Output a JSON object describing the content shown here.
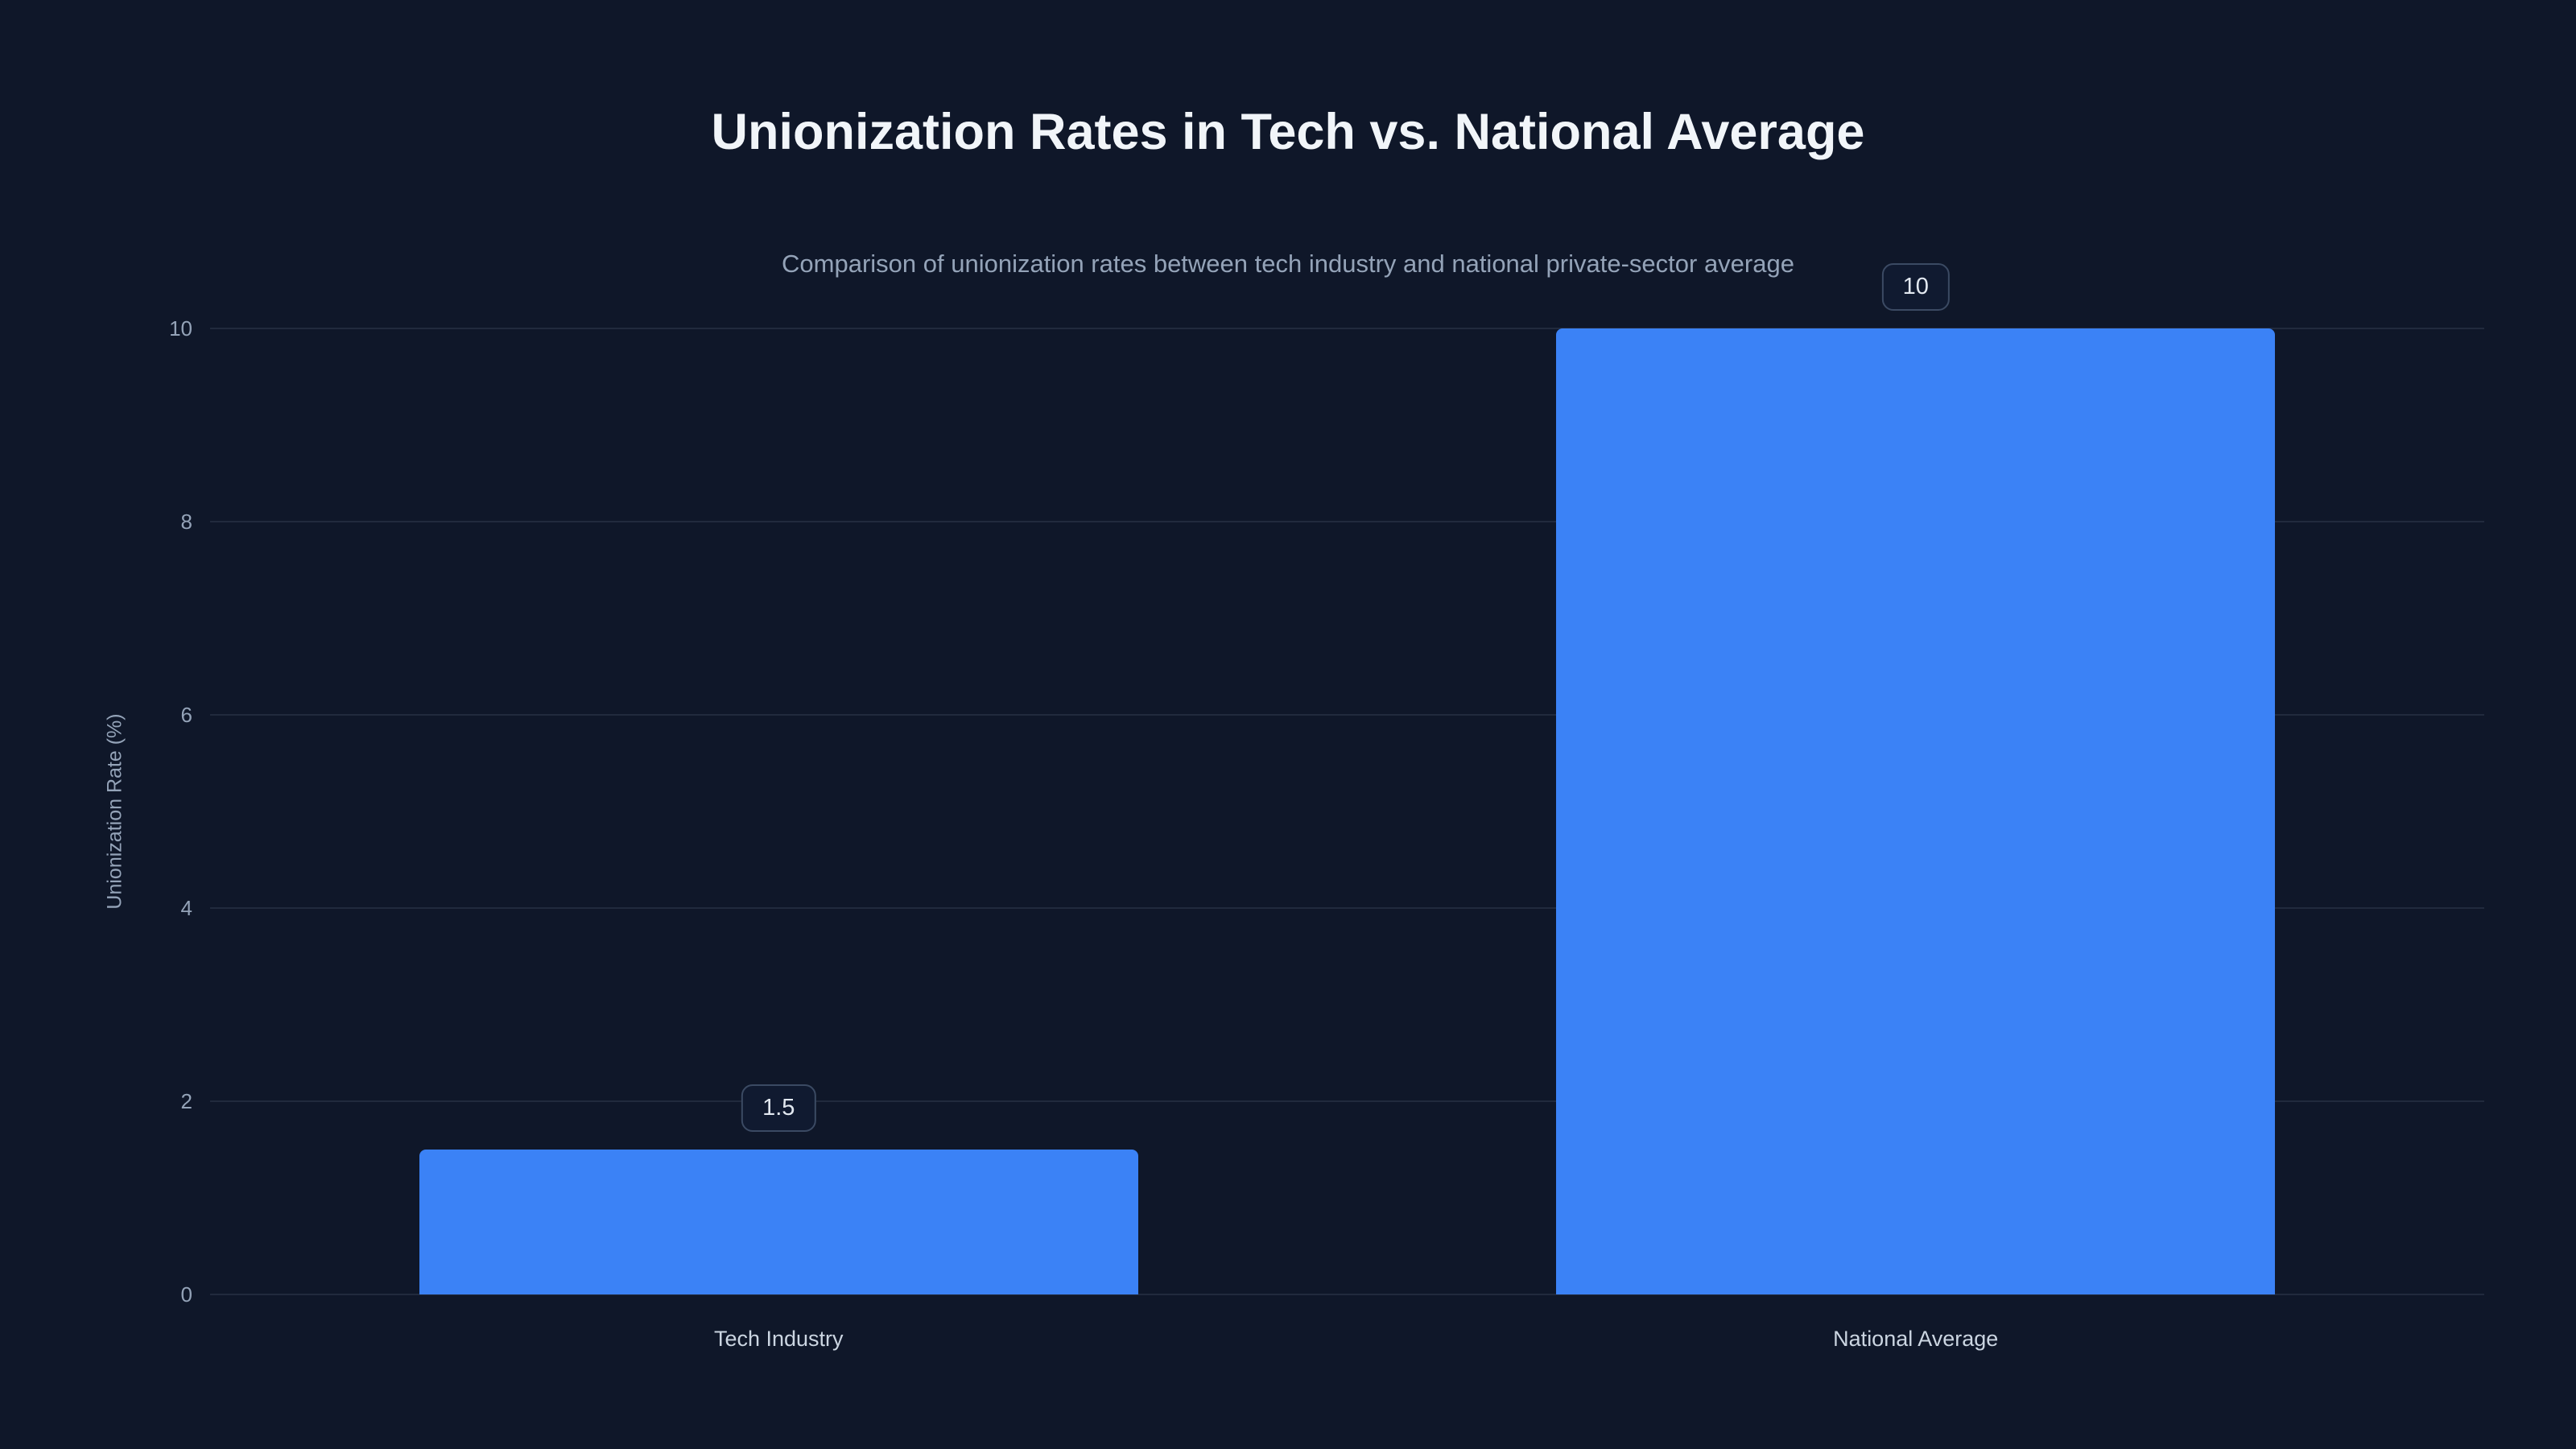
{
  "chart_data": {
    "type": "bar",
    "title": "Unionization Rates in Tech vs. National Average",
    "subtitle": "Comparison of unionization rates between tech industry and national private-sector average",
    "categories": [
      "Tech Industry",
      "National Average"
    ],
    "values": [
      1.5,
      10
    ],
    "value_labels": [
      "1.5",
      "10"
    ],
    "xlabel": "",
    "ylabel": "Unionization Rate (%)",
    "ylim": [
      0,
      10
    ],
    "yticks": [
      0,
      2,
      4,
      6,
      8,
      10
    ],
    "grid": "horizontal",
    "legend": "none",
    "bar_width_fraction": 0.632,
    "colors": {
      "background": "#0f1729",
      "bar": "#3b82f6",
      "gridline": "rgba(148,163,184,0.14)",
      "title_text": "#f1f5f9",
      "subtitle_text": "#94a3b8",
      "tick_text": "#94a3b8",
      "xlabel_text": "#cbd5e1",
      "label_box_bg": "#101a30",
      "label_box_border": "#3b4a63",
      "label_box_text": "#e2e8f0"
    }
  }
}
